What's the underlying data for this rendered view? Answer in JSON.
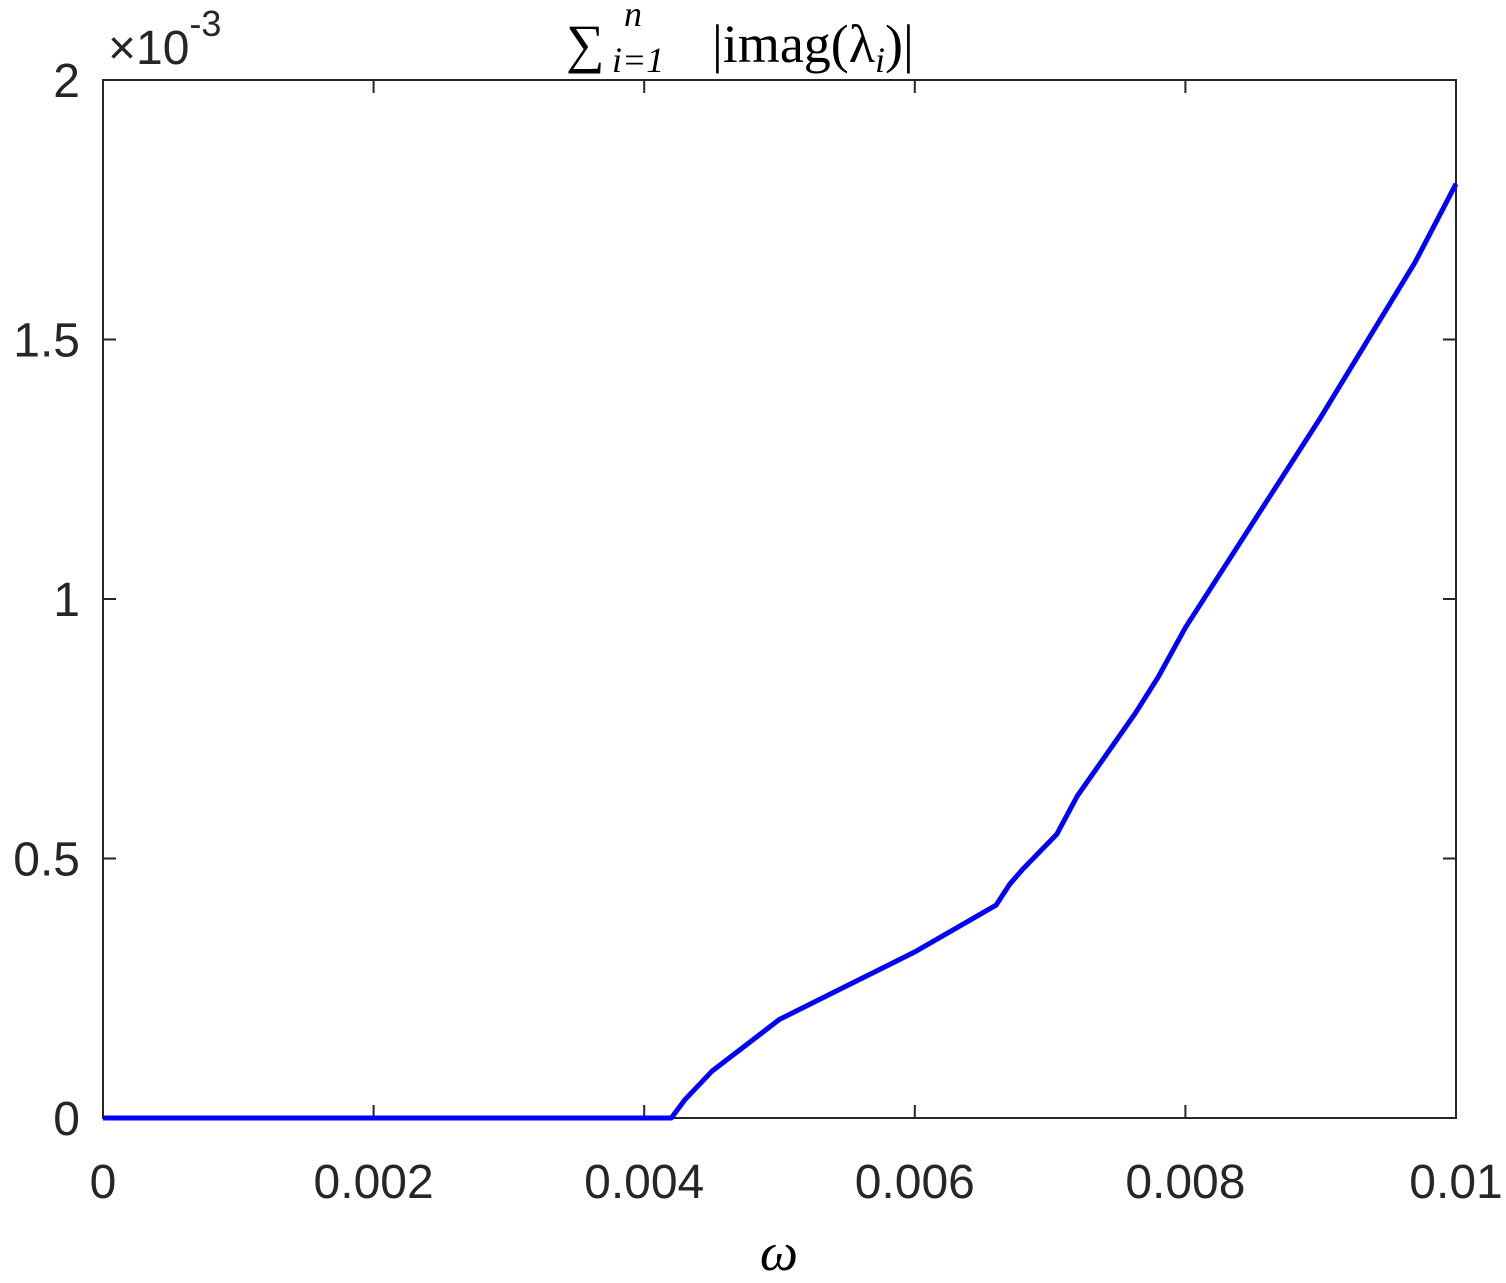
{
  "chart_data": {
    "type": "line",
    "title": [
      "∑",
      "i=1",
      "n",
      "|imag(λ",
      "i",
      ")|"
    ],
    "xlabel": "ω",
    "y_exponent": [
      "×10",
      "-3"
    ],
    "x": [
      0,
      0.002,
      0.004,
      0.0042,
      0.0043,
      0.0045,
      0.005,
      0.0055,
      0.006,
      0.0066,
      0.0067,
      0.0068,
      0.00705,
      0.0072,
      0.00763,
      0.0078,
      0.008,
      0.009,
      0.0097,
      0.01
    ],
    "series": [
      {
        "color": "#0000ff",
        "values": [
          0,
          0,
          0,
          0,
          0.035,
          0.09,
          0.19,
          0.255,
          0.32,
          0.41,
          0.45,
          0.48,
          0.547,
          0.62,
          0.78,
          0.85,
          0.945,
          1.35,
          1.65,
          1.8
        ]
      }
    ],
    "xlim": [
      0,
      0.01
    ],
    "xticks": [
      0,
      0.002,
      0.004,
      0.006,
      0.008,
      0.01
    ],
    "ylim": [
      0,
      2
    ],
    "yticks": [
      0,
      0.5,
      1,
      1.5,
      2
    ]
  }
}
